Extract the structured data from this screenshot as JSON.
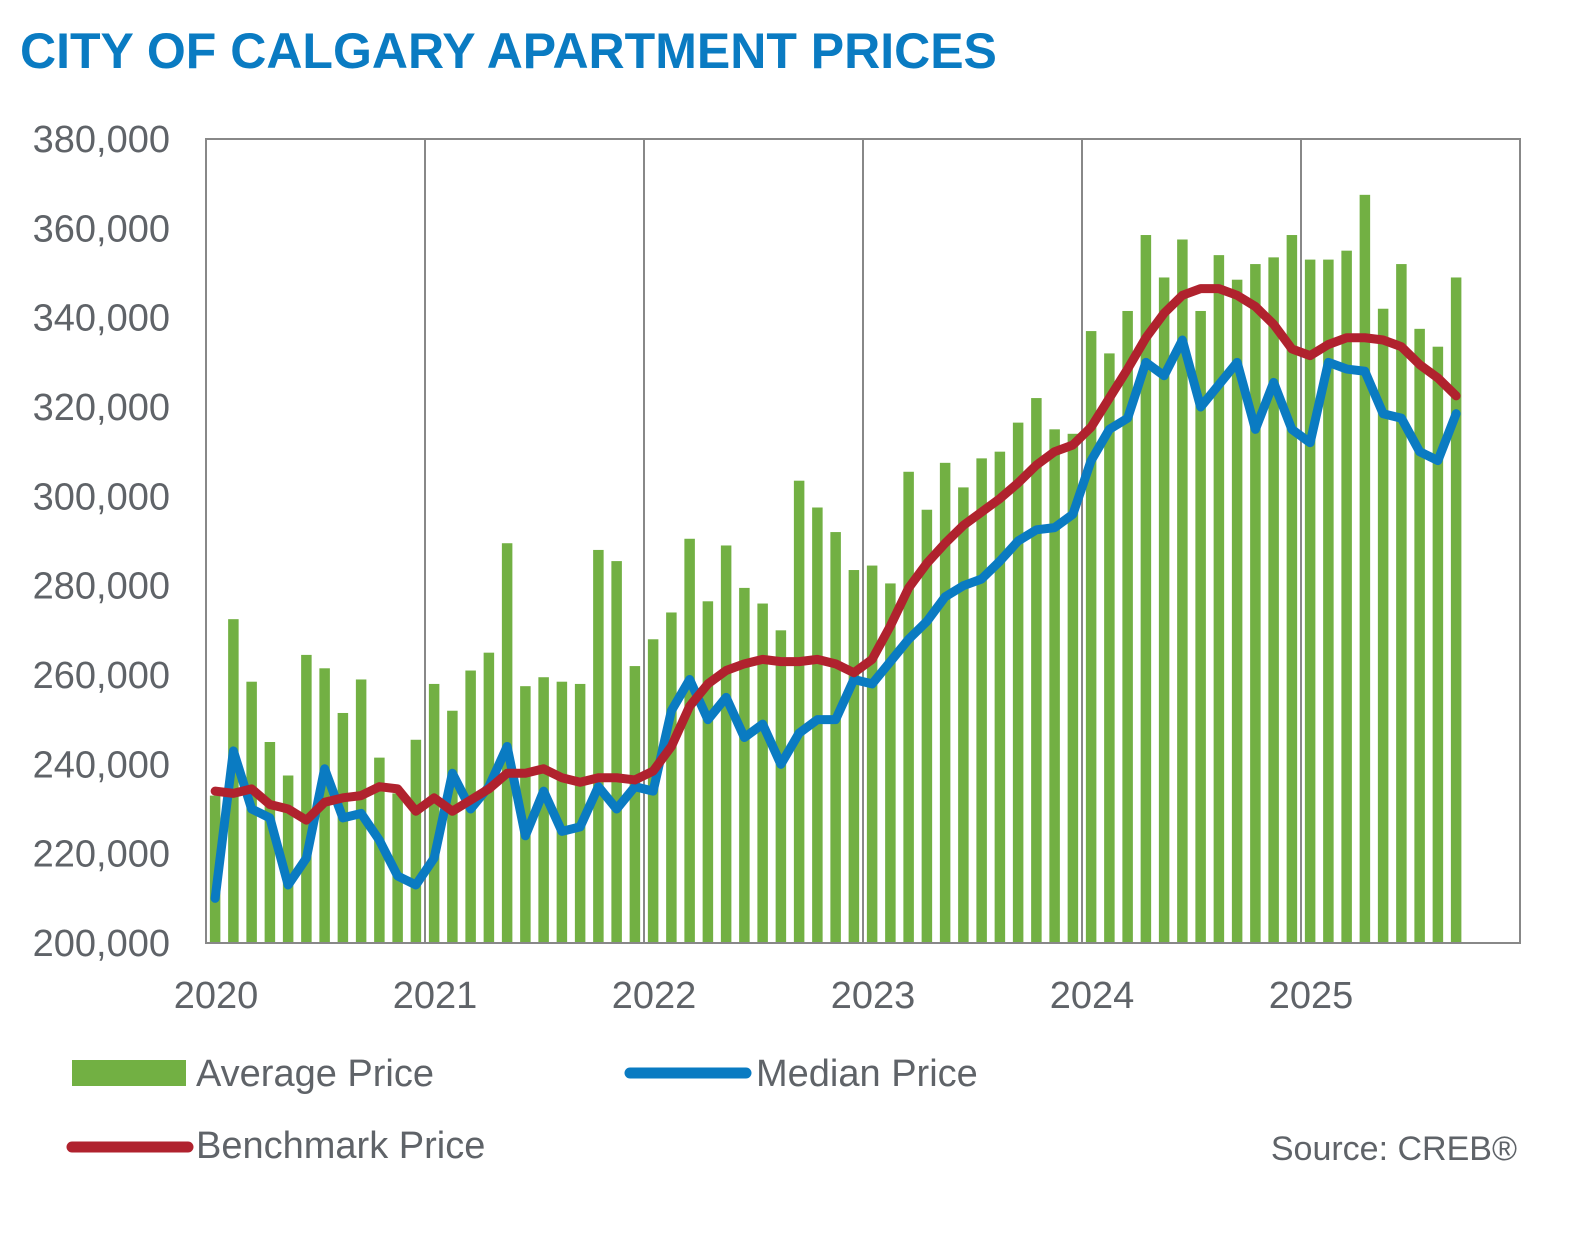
{
  "chart_data": {
    "type": "bar",
    "title": "CITY OF CALGARY APARTMENT PRICES",
    "xlabel": "",
    "ylabel": "",
    "ylim": [
      200000,
      380000
    ],
    "yticks": [
      200000,
      220000,
      240000,
      260000,
      280000,
      300000,
      320000,
      340000,
      360000,
      380000
    ],
    "ytick_labels": [
      "200,000",
      "220,000",
      "240,000",
      "260,000",
      "280,000",
      "300,000",
      "320,000",
      "340,000",
      "360,000",
      "380,000"
    ],
    "year_labels": [
      "2020",
      "2021",
      "2022",
      "2023",
      "2024",
      "2025"
    ],
    "grid": "vertical year dividers",
    "months_start": "2020-01",
    "colors": {
      "average": "#72b043",
      "median": "#0a7bc2",
      "benchmark": "#b0222e",
      "title": "#0a7bc2",
      "axis": "#888888",
      "text": "#5f6368"
    },
    "legend": [
      "Average Price",
      "Median Price",
      "Benchmark Price"
    ],
    "source": "Source: CREB®",
    "series": [
      {
        "name": "Average Price",
        "type": "bar",
        "values": [
          233000,
          272500,
          258500,
          245000,
          237500,
          264500,
          261500,
          251500,
          259000,
          241500,
          233500,
          245500,
          258000,
          252000,
          261000,
          265000,
          289500,
          257500,
          259500,
          258500,
          258000,
          288000,
          285500,
          262000,
          268000,
          274000,
          290500,
          276500,
          289000,
          279500,
          276000,
          270000,
          303500,
          297500,
          292000,
          283500,
          284500,
          280500,
          305500,
          297000,
          307500,
          302000,
          308500,
          310000,
          316500,
          322000,
          315000,
          314000,
          337000,
          332000,
          341500,
          358500,
          349000,
          357500,
          341500,
          354000,
          348500,
          352000,
          353500,
          358500,
          353000,
          353000,
          355000,
          367500,
          342000,
          352000,
          337500,
          333500,
          349000
        ]
      },
      {
        "name": "Median Price",
        "type": "line",
        "values": [
          210000,
          243000,
          230000,
          228000,
          213000,
          219000,
          239000,
          228000,
          229000,
          223000,
          215000,
          213000,
          219000,
          238000,
          230000,
          235000,
          244000,
          224000,
          234000,
          225000,
          226000,
          235000,
          230000,
          235000,
          234000,
          252000,
          259000,
          250000,
          255000,
          246000,
          249000,
          240000,
          247000,
          250000,
          250000,
          259000,
          258000,
          263000,
          268000,
          272000,
          277500,
          280000,
          281500,
          285500,
          290000,
          292500,
          293000,
          296000,
          308000,
          315000,
          317500,
          330000,
          327000,
          335000,
          320000,
          325000,
          330000,
          315000,
          325500,
          315000,
          312000,
          330000,
          328500,
          328000,
          318500,
          317500,
          310000,
          308000,
          318500
        ]
      },
      {
        "name": "Benchmark Price",
        "type": "line",
        "values": [
          234000,
          233500,
          234500,
          231000,
          230000,
          227500,
          231500,
          232500,
          233000,
          235000,
          234500,
          229500,
          232500,
          229500,
          232000,
          234500,
          238000,
          238000,
          239000,
          237000,
          236000,
          237000,
          237000,
          236500,
          238500,
          244000,
          253000,
          258000,
          261000,
          262500,
          263500,
          263000,
          263000,
          263500,
          262500,
          260500,
          263500,
          271000,
          279500,
          285000,
          289500,
          293500,
          296500,
          299500,
          303000,
          307000,
          310000,
          311500,
          315500,
          322000,
          328500,
          335500,
          341000,
          345000,
          346500,
          346500,
          345000,
          342500,
          338500,
          333000,
          331500,
          334000,
          335500,
          335500,
          335000,
          333500,
          329500,
          326500,
          322500
        ]
      }
    ]
  }
}
